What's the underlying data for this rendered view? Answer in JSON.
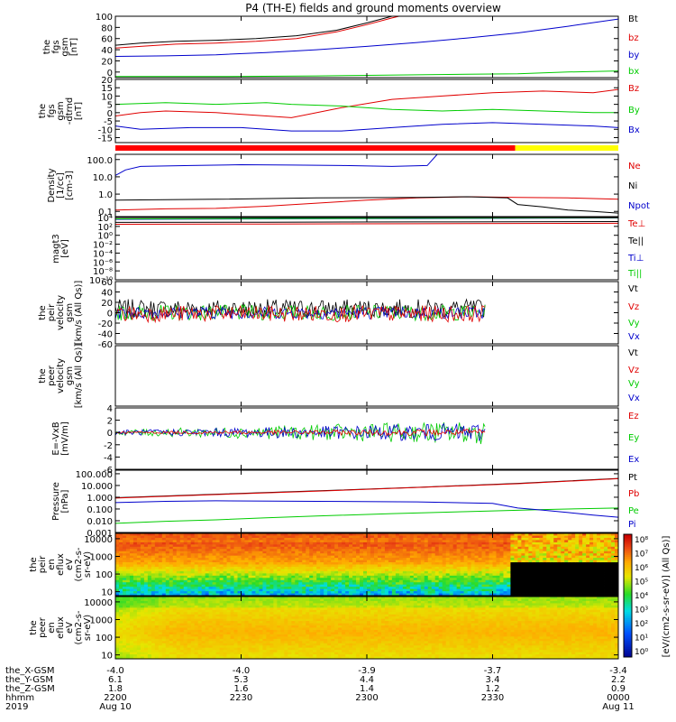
{
  "title": "P4 (TH-E) fields and ground moments overview",
  "colors": {
    "black": "#000000",
    "red": "#e00000",
    "green": "#00cc00",
    "blue": "#0000cc",
    "yellow": "#ffff00"
  },
  "chart_data": [
    {
      "type": "line",
      "id": "fgs_gsm",
      "ylabel": [
        "the",
        "fgs",
        "gsm",
        "[nT]"
      ],
      "ylim": [
        -10,
        100
      ],
      "yticks": [
        "100",
        "80",
        "60",
        "40",
        "20",
        "0"
      ],
      "ytick_values": [
        100,
        80,
        60,
        40,
        20,
        0
      ],
      "legend": [
        "Bt",
        "bz",
        "by",
        "bx"
      ],
      "series": [
        {
          "name": "Bt",
          "color": "black",
          "x": [
            0,
            0.05,
            0.12,
            0.2,
            0.28,
            0.36,
            0.44,
            0.5,
            0.55,
            0.6
          ],
          "y": [
            48,
            52,
            55,
            57,
            60,
            65,
            75,
            88,
            100,
            110
          ]
        },
        {
          "name": "bz",
          "color": "red",
          "x": [
            0,
            0.05,
            0.12,
            0.2,
            0.28,
            0.36,
            0.44,
            0.5,
            0.55,
            0.6
          ],
          "y": [
            43,
            46,
            50,
            52,
            55,
            60,
            72,
            85,
            97,
            108
          ]
        },
        {
          "name": "by",
          "color": "blue",
          "x": [
            0,
            0.1,
            0.2,
            0.3,
            0.4,
            0.5,
            0.6,
            0.7,
            0.8,
            0.9,
            1.0
          ],
          "y": [
            28,
            29,
            31,
            35,
            40,
            46,
            53,
            61,
            70,
            82,
            95
          ]
        },
        {
          "name": "bx",
          "color": "green",
          "x": [
            0,
            0.2,
            0.4,
            0.5,
            0.6,
            0.7,
            0.8,
            0.9,
            1.0
          ],
          "y": [
            -8,
            -8,
            -7,
            -6,
            -5,
            -4,
            -3,
            0,
            2
          ]
        }
      ]
    },
    {
      "type": "line",
      "id": "fgs_gsm_detrended",
      "ylabel": [
        "the",
        "fgs",
        "gsm",
        "-dtrnd",
        "[nT]"
      ],
      "ylim": [
        -18,
        20
      ],
      "yticks": [
        "20",
        "15",
        "10",
        "5",
        "0",
        "-5",
        "-10",
        "-15"
      ],
      "ytick_values": [
        20,
        15,
        10,
        5,
        0,
        -5,
        -10,
        -15
      ],
      "legend": [
        "Bz",
        "By",
        "Bx"
      ],
      "series": [
        {
          "name": "Bz",
          "color": "red",
          "x": [
            0,
            0.05,
            0.1,
            0.2,
            0.3,
            0.35,
            0.45,
            0.55,
            0.65,
            0.75,
            0.85,
            0.95,
            1.0
          ],
          "y": [
            -2,
            0,
            1,
            0,
            -2,
            -3,
            3,
            8,
            10,
            12,
            13,
            12,
            14
          ]
        },
        {
          "name": "By",
          "color": "green",
          "x": [
            0,
            0.1,
            0.2,
            0.3,
            0.35,
            0.45,
            0.55,
            0.65,
            0.75,
            0.85,
            0.95,
            1.0
          ],
          "y": [
            5,
            6,
            5,
            6,
            5,
            4,
            2,
            1,
            2,
            1,
            0,
            0
          ]
        },
        {
          "name": "Bx",
          "color": "blue",
          "x": [
            0,
            0.05,
            0.15,
            0.25,
            0.35,
            0.45,
            0.55,
            0.65,
            0.75,
            0.85,
            0.95,
            1.0
          ],
          "y": [
            -8,
            -10,
            -9,
            -9,
            -11,
            -11,
            -9,
            -7,
            -6,
            -7,
            -8,
            -9
          ]
        }
      ]
    },
    {
      "type": "line",
      "id": "density",
      "log": true,
      "ylabel": [
        "Density",
        "[1/cc]",
        "[cm-3]"
      ],
      "ylim": [
        0.05,
        200
      ],
      "yticks": [
        "100.0",
        "10.0",
        "1.0",
        "0.1"
      ],
      "ytick_values": [
        100,
        10,
        1,
        0.1
      ],
      "legend": [
        "Ne",
        "Ni",
        "Npot"
      ],
      "series": [
        {
          "name": "Ne",
          "color": "red",
          "x": [
            0,
            0.1,
            0.2,
            0.3,
            0.4,
            0.5,
            0.6,
            0.7,
            0.8,
            0.9,
            1.0
          ],
          "y": [
            0.12,
            0.14,
            0.15,
            0.2,
            0.3,
            0.45,
            0.6,
            0.7,
            0.65,
            0.6,
            0.5
          ]
        },
        {
          "name": "Ni",
          "color": "black",
          "x": [
            0,
            0.2,
            0.4,
            0.6,
            0.7,
            0.78,
            0.8,
            0.85,
            0.9,
            0.95,
            1.0
          ],
          "y": [
            0.45,
            0.5,
            0.6,
            0.65,
            0.7,
            0.6,
            0.25,
            0.18,
            0.12,
            0.1,
            0.08
          ]
        },
        {
          "name": "Npot",
          "color": "blue",
          "x": [
            0,
            0.02,
            0.05,
            0.15,
            0.25,
            0.35,
            0.45,
            0.55,
            0.62,
            0.64
          ],
          "y": [
            12,
            25,
            40,
            45,
            50,
            48,
            45,
            40,
            45,
            200
          ]
        }
      ]
    },
    {
      "type": "line",
      "id": "temperature",
      "log": true,
      "ylabel": [
        "magt3",
        "[eV]"
      ],
      "ylim": [
        1e-10,
        10000.0
      ],
      "yticks": [
        "10⁴",
        "10²",
        "10⁰",
        "10⁻²",
        "10⁻⁴",
        "10⁻⁶",
        "10⁻⁸",
        "10⁻¹⁰"
      ],
      "ytick_values": [
        10000.0,
        100.0,
        1,
        0.01,
        0.0001,
        1e-06,
        1e-08,
        1e-10
      ],
      "legend": [
        "Te⊥",
        "Te||",
        "Ti⊥",
        "Ti||"
      ],
      "series": [
        {
          "name": "Te⊥",
          "color": "red",
          "x": [
            0,
            0.3,
            0.6,
            1.0
          ],
          "y": [
            300,
            350,
            400,
            500
          ]
        },
        {
          "name": "Te||",
          "color": "black",
          "x": [
            0,
            0.3,
            0.6,
            1.0
          ],
          "y": [
            800,
            900,
            1000,
            1200
          ]
        },
        {
          "name": "Ti⊥",
          "color": "blue",
          "x": [
            0,
            0.3,
            0.6,
            1.0
          ],
          "y": [
            4000,
            5000,
            6000,
            8000
          ]
        },
        {
          "name": "Ti||",
          "color": "green",
          "x": [
            0,
            0.3,
            0.6,
            1.0
          ],
          "y": [
            5000,
            6000,
            7000,
            8500
          ]
        }
      ]
    },
    {
      "type": "line",
      "id": "peir_velocity",
      "ylabel": [
        "the",
        "peir",
        "velocity",
        "gsm",
        "[km/s (All Qs)]"
      ],
      "ylim": [
        -60,
        60
      ],
      "yticks": [
        "60",
        "40",
        "20",
        "0",
        "-20",
        "-40",
        "-60"
      ],
      "ytick_values": [
        60,
        40,
        20,
        0,
        -20,
        -40,
        -60
      ],
      "legend": [
        "Vt",
        "Vz",
        "Vy",
        "Vx"
      ],
      "noise": [
        {
          "name": "Vt",
          "color": "black",
          "base": 8,
          "amp": 18,
          "end": 0.735
        },
        {
          "name": "Vy",
          "color": "green",
          "base": 0,
          "amp": 15,
          "end": 0.735
        },
        {
          "name": "Vx",
          "color": "blue",
          "base": 0,
          "amp": 12,
          "end": 0.735
        },
        {
          "name": "Vz",
          "color": "red",
          "base": -2,
          "amp": 16,
          "end": 0.735
        }
      ]
    },
    {
      "type": "line",
      "id": "peer_velocity",
      "ylabel": [
        "the",
        "peer",
        "velocity",
        "gsm",
        "[km/s (All Qs)]"
      ],
      "ylim": [
        -60,
        60
      ],
      "yticks": [],
      "ytick_values": [],
      "legend": [
        "Vt",
        "Vz",
        "Vy",
        "Vx"
      ]
    },
    {
      "type": "line",
      "id": "efield",
      "ylabel": [
        "E=-VxB",
        "[mV/m]"
      ],
      "ylim": [
        -6,
        4
      ],
      "yticks": [
        "4",
        "2",
        "0",
        "-2",
        "-4",
        "-6"
      ],
      "ytick_values": [
        4,
        2,
        0,
        -2,
        -4,
        -6
      ],
      "legend": [
        "Ez",
        "Ey",
        "Ex"
      ],
      "noise": [
        {
          "name": "Ey",
          "color": "green",
          "base": 0,
          "amp": 1.6,
          "end": 0.735,
          "grow": true
        },
        {
          "name": "Ex",
          "color": "blue",
          "base": 0,
          "amp": 1.3,
          "end": 0.735,
          "grow": true
        },
        {
          "name": "Ez",
          "color": "red",
          "base": 0,
          "amp": 0.5,
          "end": 0.735,
          "grow": true
        }
      ]
    },
    {
      "type": "line",
      "id": "pressure",
      "log": true,
      "ylabel": [
        "Pressure",
        "[nPa]"
      ],
      "ylim": [
        0.001,
        200
      ],
      "yticks": [
        "100.000",
        "10.000",
        "1.000",
        "0.100",
        "0.010",
        "0.001"
      ],
      "ytick_values": [
        100,
        10,
        1,
        0.1,
        0.01,
        0.001
      ],
      "legend": [
        "Pt",
        "Pb",
        "Pe",
        "Pi"
      ],
      "series": [
        {
          "name": "Pt",
          "color": "black",
          "x": [
            0,
            0.2,
            0.4,
            0.6,
            0.8,
            1.0
          ],
          "y": [
            0.9,
            1.8,
            3.5,
            7,
            15,
            40
          ]
        },
        {
          "name": "Pb",
          "color": "red",
          "x": [
            0,
            0.2,
            0.4,
            0.6,
            0.8,
            1.0
          ],
          "y": [
            0.85,
            1.7,
            3.3,
            6.8,
            14,
            38
          ]
        },
        {
          "name": "Pe",
          "color": "green",
          "x": [
            0,
            0.1,
            0.2,
            0.3,
            0.4,
            0.55,
            0.7,
            0.85,
            1.0
          ],
          "y": [
            0.006,
            0.009,
            0.012,
            0.018,
            0.025,
            0.04,
            0.06,
            0.09,
            0.12
          ]
        },
        {
          "name": "Pi",
          "color": "blue",
          "x": [
            0,
            0.1,
            0.2,
            0.4,
            0.6,
            0.75,
            0.8,
            0.85,
            0.9,
            0.95,
            1.0
          ],
          "y": [
            0.35,
            0.45,
            0.5,
            0.45,
            0.4,
            0.3,
            0.12,
            0.08,
            0.05,
            0.03,
            0.02
          ]
        }
      ]
    },
    {
      "type": "heatmap",
      "id": "peir_eflux",
      "log": true,
      "ylabel": [
        "the",
        "peir",
        "en",
        "eflux",
        "eV",
        "(cm2-s-",
        "sr-eV)"
      ],
      "ylim": [
        6,
        20000
      ],
      "yticks": [
        "10000",
        "1000",
        "100",
        "10"
      ],
      "ytick_values": [
        10000,
        1000,
        100,
        10
      ]
    },
    {
      "type": "heatmap",
      "id": "peer_eflux",
      "log": true,
      "ylabel": [
        "the",
        "peer",
        "en",
        "eflux",
        "eV",
        "(cm2-s-",
        "sr-eV)"
      ],
      "ylim": [
        6,
        20000
      ],
      "yticks": [
        "10000",
        "1000",
        "100",
        "10"
      ],
      "ytick_values": [
        10000,
        1000,
        100,
        10
      ]
    }
  ],
  "colorbar": {
    "ticks": [
      "10⁸",
      "10⁷",
      "10⁶",
      "10⁵",
      "10⁴",
      "10³",
      "10²",
      "10¹",
      "10⁰"
    ],
    "label": "[eV/(cm2-s-sr-eV)] (All Qs)]"
  },
  "x_axis": {
    "rows": [
      {
        "label": "the_X-GSM",
        "values": [
          "-4.0",
          "-4.0",
          "-3.9",
          "-3.7",
          "-3.4"
        ]
      },
      {
        "label": "the_Y-GSM",
        "values": [
          "6.1",
          "5.3",
          "4.4",
          "3.4",
          "2.2"
        ]
      },
      {
        "label": "the_Z-GSM",
        "values": [
          "1.8",
          "1.6",
          "1.4",
          "1.2",
          "0.9"
        ]
      },
      {
        "label": "hhmm",
        "values": [
          "2200",
          "2230",
          "2300",
          "2330",
          "0000"
        ]
      },
      {
        "label": "2019",
        "values": [
          "Aug 10",
          "",
          "",
          "",
          "Aug 11"
        ]
      }
    ]
  }
}
